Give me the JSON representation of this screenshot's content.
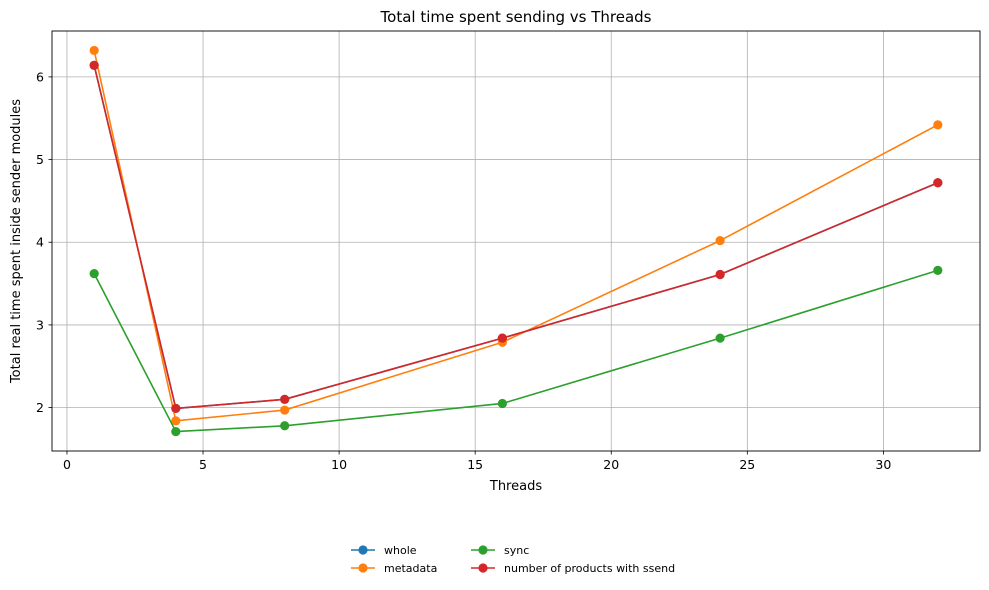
{
  "chart_data": {
    "type": "line",
    "title": "Total time spent sending vs Threads",
    "xlabel": "Threads",
    "ylabel": "Total real time spent inside sender modules",
    "xlim": [
      -0.55,
      33.55
    ],
    "ylim": [
      1.475,
      6.555
    ],
    "xticks": [
      0,
      5,
      10,
      15,
      20,
      25,
      30
    ],
    "yticks": [
      2,
      3,
      4,
      5,
      6
    ],
    "grid": true,
    "legend_position": "bottom-center",
    "x": [
      1,
      4,
      8,
      16,
      24,
      32
    ],
    "series": [
      {
        "name": "whole",
        "color": "#1f77b4",
        "values": [
          6.14,
          1.99,
          2.1,
          2.84,
          3.61,
          4.72
        ]
      },
      {
        "name": "metadata",
        "color": "#ff7f0e",
        "values": [
          6.32,
          1.84,
          1.97,
          2.79,
          4.02,
          5.42
        ]
      },
      {
        "name": "sync",
        "color": "#2ca02c",
        "values": [
          3.62,
          1.71,
          1.78,
          2.05,
          2.84,
          3.66
        ]
      },
      {
        "name": "number of products with ssend",
        "color": "#d62728",
        "values": [
          6.14,
          1.99,
          2.1,
          2.84,
          3.61,
          4.72
        ]
      }
    ]
  }
}
